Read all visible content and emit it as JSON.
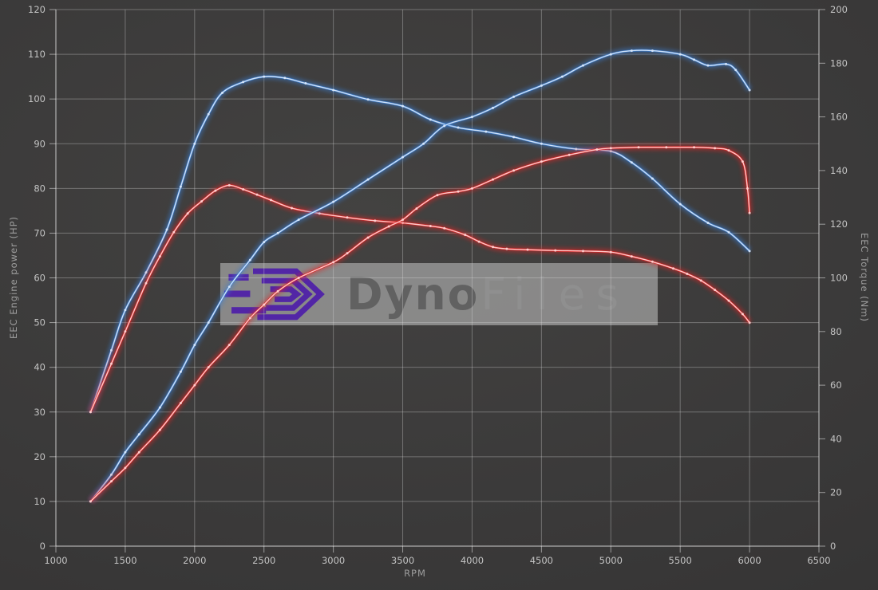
{
  "watermark": {
    "brand_bold": "Dyno",
    "brand_light": "Files"
  },
  "chart_data": {
    "type": "line",
    "title": "",
    "xlabel": "RPM",
    "ylabel_left": "EEC Engine power (HP)",
    "ylabel_right": "EEC Torque (Nm)",
    "xlim": [
      1000,
      6500
    ],
    "ylim_left": [
      0,
      120
    ],
    "ylim_right": [
      0,
      200
    ],
    "grid": true,
    "legend_position": "none",
    "x_ticks": [
      1000,
      1500,
      2000,
      2500,
      3000,
      3500,
      4000,
      4500,
      5000,
      5500,
      6000,
      6500
    ],
    "left_ticks": [
      0,
      10,
      20,
      30,
      40,
      50,
      60,
      70,
      80,
      90,
      100,
      110,
      120
    ],
    "right_ticks": [
      0,
      20,
      40,
      60,
      80,
      100,
      120,
      140,
      160,
      180,
      200
    ],
    "series": [
      {
        "name": "blue-torque",
        "axis": "right",
        "unit": "Nm",
        "color": "#3c7fd2",
        "core": "#d8e8fb",
        "points": [
          [
            1250,
            50
          ],
          [
            1400,
            73
          ],
          [
            1500,
            88
          ],
          [
            1650,
            102
          ],
          [
            1800,
            118
          ],
          [
            1900,
            134
          ],
          [
            2000,
            150
          ],
          [
            2100,
            161
          ],
          [
            2200,
            169
          ],
          [
            2350,
            173
          ],
          [
            2500,
            175
          ],
          [
            2650,
            174.5
          ],
          [
            2800,
            172.5
          ],
          [
            3000,
            170
          ],
          [
            3250,
            166.5
          ],
          [
            3500,
            164
          ],
          [
            3700,
            159
          ],
          [
            3900,
            156
          ],
          [
            4100,
            154.5
          ],
          [
            4300,
            152.5
          ],
          [
            4500,
            150
          ],
          [
            4750,
            148
          ],
          [
            5000,
            147.2
          ],
          [
            5150,
            143
          ],
          [
            5300,
            137
          ],
          [
            5500,
            127.5
          ],
          [
            5700,
            120.5
          ],
          [
            5850,
            117
          ],
          [
            6000,
            110
          ]
        ]
      },
      {
        "name": "red-torque",
        "axis": "right",
        "unit": "Nm",
        "color": "#e02525",
        "core": "#ffd2d2",
        "points": [
          [
            1250,
            50
          ],
          [
            1400,
            68
          ],
          [
            1500,
            80
          ],
          [
            1650,
            98
          ],
          [
            1750,
            108
          ],
          [
            1850,
            117
          ],
          [
            1950,
            124
          ],
          [
            2050,
            128.5
          ],
          [
            2150,
            132.5
          ],
          [
            2250,
            134.5
          ],
          [
            2350,
            133
          ],
          [
            2450,
            131
          ],
          [
            2550,
            129
          ],
          [
            2700,
            126
          ],
          [
            2900,
            124
          ],
          [
            3100,
            122.5
          ],
          [
            3300,
            121.3
          ],
          [
            3500,
            120.5
          ],
          [
            3700,
            119.3
          ],
          [
            3800,
            118.5
          ],
          [
            3950,
            116
          ],
          [
            4050,
            113.5
          ],
          [
            4150,
            111.5
          ],
          [
            4250,
            110.8
          ],
          [
            4400,
            110.5
          ],
          [
            4600,
            110.2
          ],
          [
            4800,
            110
          ],
          [
            5000,
            109.6
          ],
          [
            5150,
            108
          ],
          [
            5300,
            106
          ],
          [
            5450,
            103.5
          ],
          [
            5550,
            101.5
          ],
          [
            5650,
            99
          ],
          [
            5750,
            95.5
          ],
          [
            5850,
            91.5
          ],
          [
            5950,
            86.5
          ],
          [
            6000,
            83.3
          ]
        ]
      },
      {
        "name": "blue-power",
        "axis": "left",
        "unit": "HP",
        "color": "#3c7fd2",
        "core": "#d8e8fb",
        "points": [
          [
            1250,
            10
          ],
          [
            1400,
            16
          ],
          [
            1500,
            21
          ],
          [
            1600,
            25
          ],
          [
            1750,
            31
          ],
          [
            1900,
            39
          ],
          [
            2000,
            45
          ],
          [
            2100,
            50
          ],
          [
            2250,
            58
          ],
          [
            2400,
            64
          ],
          [
            2500,
            68
          ],
          [
            2600,
            70
          ],
          [
            2750,
            73
          ],
          [
            3000,
            77
          ],
          [
            3250,
            82
          ],
          [
            3500,
            87
          ],
          [
            3650,
            90
          ],
          [
            3800,
            94
          ],
          [
            4000,
            96
          ],
          [
            4150,
            98
          ],
          [
            4300,
            100.5
          ],
          [
            4500,
            103
          ],
          [
            4650,
            105
          ],
          [
            4800,
            107.5
          ],
          [
            5000,
            110
          ],
          [
            5150,
            110.8
          ],
          [
            5300,
            110.8
          ],
          [
            5500,
            110
          ],
          [
            5600,
            108.8
          ],
          [
            5700,
            107.5
          ],
          [
            5830,
            107.8
          ],
          [
            5900,
            106.5
          ],
          [
            6000,
            102
          ]
        ]
      },
      {
        "name": "red-power",
        "axis": "left",
        "unit": "HP",
        "color": "#e02525",
        "core": "#ffd2d2",
        "points": [
          [
            1250,
            10
          ],
          [
            1400,
            14.5
          ],
          [
            1500,
            17.5
          ],
          [
            1600,
            21
          ],
          [
            1750,
            26
          ],
          [
            1900,
            32
          ],
          [
            2000,
            36
          ],
          [
            2100,
            40
          ],
          [
            2250,
            45
          ],
          [
            2400,
            51
          ],
          [
            2500,
            54
          ],
          [
            2600,
            57
          ],
          [
            2750,
            60
          ],
          [
            3000,
            63.5
          ],
          [
            3100,
            65.5
          ],
          [
            3250,
            69
          ],
          [
            3400,
            71.5
          ],
          [
            3500,
            73
          ],
          [
            3600,
            75.5
          ],
          [
            3750,
            78.5
          ],
          [
            3900,
            79.3
          ],
          [
            4000,
            80
          ],
          [
            4150,
            82
          ],
          [
            4300,
            84
          ],
          [
            4500,
            86
          ],
          [
            4700,
            87.5
          ],
          [
            4900,
            88.7
          ],
          [
            5000,
            89
          ],
          [
            5200,
            89.2
          ],
          [
            5400,
            89.2
          ],
          [
            5600,
            89.2
          ],
          [
            5750,
            89
          ],
          [
            5850,
            88.5
          ],
          [
            5950,
            86
          ],
          [
            5985,
            80
          ],
          [
            6000,
            74.5
          ]
        ]
      }
    ]
  }
}
